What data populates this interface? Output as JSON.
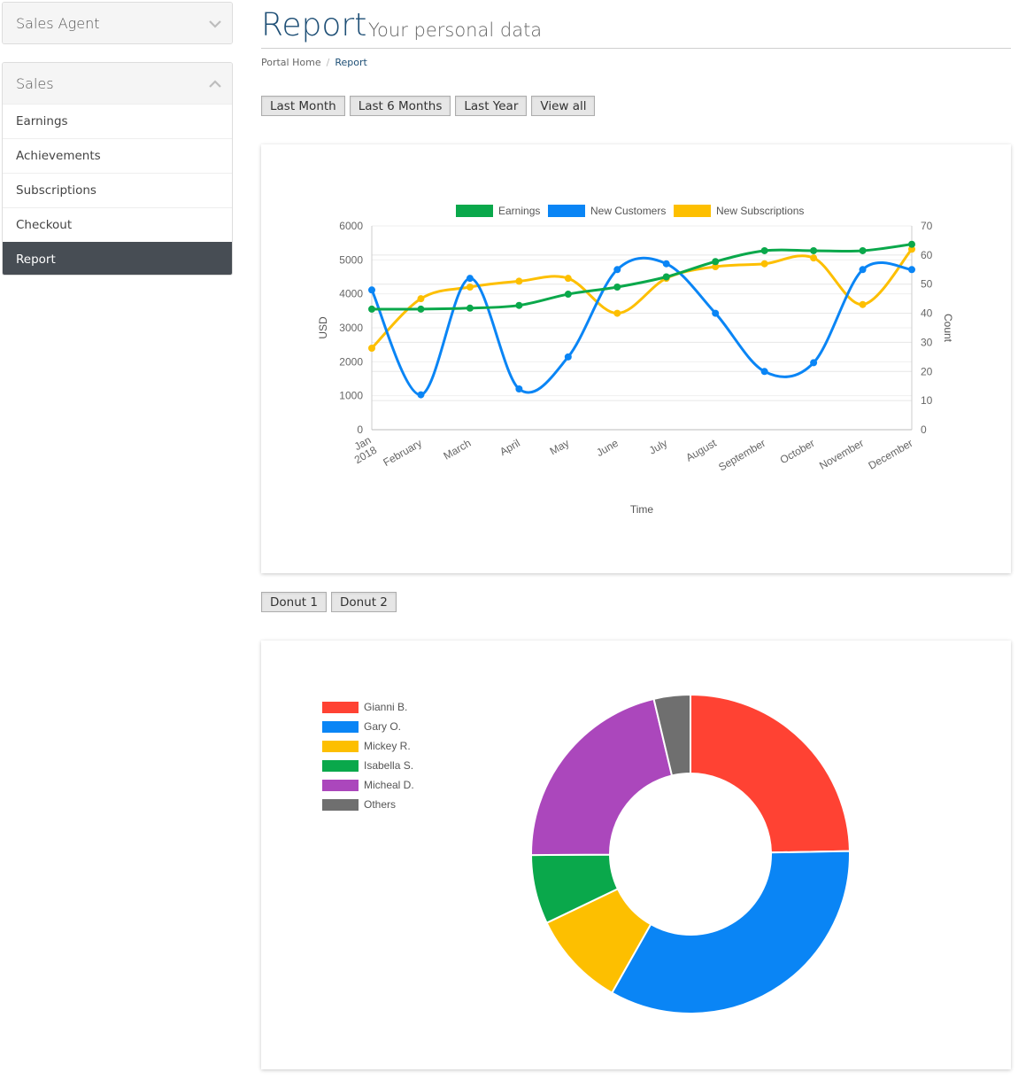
{
  "sidebar": {
    "agent_panel": {
      "label": "Sales Agent"
    },
    "sales_panel": {
      "label": "Sales",
      "items": [
        {
          "label": "Earnings"
        },
        {
          "label": "Achievements"
        },
        {
          "label": "Subscriptions"
        },
        {
          "label": "Checkout"
        },
        {
          "label": "Report",
          "active": true
        }
      ]
    }
  },
  "header": {
    "title": "Report",
    "subtitle": "Your personal data",
    "breadcrumb": [
      "Portal Home",
      "Report"
    ]
  },
  "range_buttons": [
    "Last Month",
    "Last 6 Months",
    "Last Year",
    "View all"
  ],
  "donut_buttons": [
    "Donut 1",
    "Donut 2"
  ],
  "colors": {
    "accent": "#1d4e75",
    "active_nav": "#474d54",
    "earnings": "#0aa84b",
    "new_customers": "#0a85f5",
    "new_subscriptions": "#fdbf00",
    "donut": [
      "#ff4233",
      "#0a85f5",
      "#fdbf00",
      "#0aa84b",
      "#ab47bc",
      "#6f6f6f"
    ]
  },
  "chart_data": [
    {
      "type": "line",
      "categories": [
        "Jan 2018",
        "February",
        "March",
        "April",
        "May",
        "June",
        "July",
        "August",
        "September",
        "October",
        "November",
        "December"
      ],
      "xlabel": "Time",
      "ylabel": "USD",
      "y2label": "Count",
      "ylim": [
        0,
        6000
      ],
      "y2lim": [
        0,
        70
      ],
      "yticks": [
        0,
        1000,
        2000,
        3000,
        4000,
        5000,
        6000
      ],
      "y2ticks": [
        0,
        10,
        20,
        30,
        40,
        50,
        60,
        70
      ],
      "grid": true,
      "legend": "top",
      "series": [
        {
          "name": "Earnings",
          "axis": "left",
          "values": [
            3550,
            3550,
            3580,
            3660,
            3990,
            4200,
            4500,
            4950,
            5270,
            5270,
            5270,
            5460
          ]
        },
        {
          "name": "New Customers",
          "axis": "right",
          "values": [
            48,
            12,
            52,
            14,
            25,
            55,
            57,
            40,
            20,
            23,
            55,
            55
          ]
        },
        {
          "name": "New Subscriptions",
          "axis": "right",
          "values": [
            28,
            45,
            49,
            51,
            52,
            40,
            52,
            56,
            57,
            59,
            43,
            62
          ]
        }
      ]
    },
    {
      "type": "pie",
      "donut": true,
      "legend": "top-left",
      "labels": [
        "Gianni B.",
        "Gary O.",
        "Mickey R.",
        "Isabella S.",
        "Micheal D.",
        "Others"
      ],
      "values": [
        24.7,
        33.5,
        9.7,
        7.0,
        21.4,
        3.7
      ]
    }
  ]
}
